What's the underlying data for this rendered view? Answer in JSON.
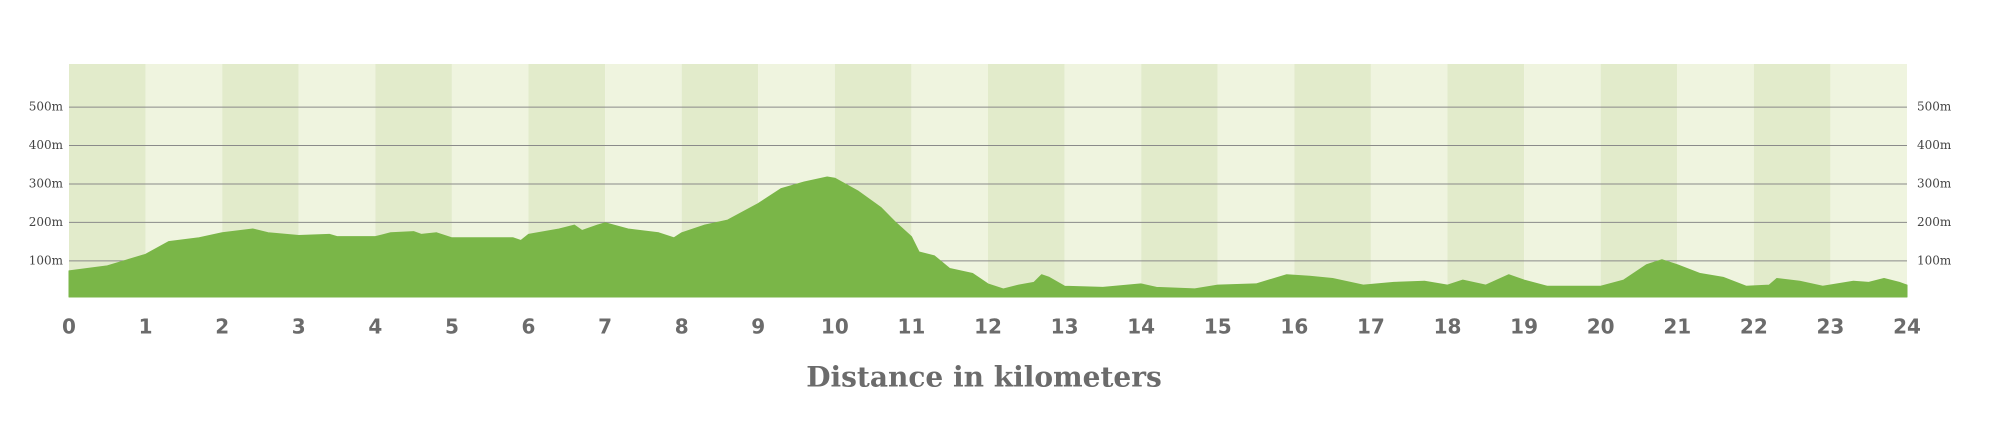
{
  "chart_data": {
    "type": "area",
    "x_label": "Distance in kilometers",
    "color": "#7ab648",
    "grid": true,
    "x": [
      0,
      0.5,
      1.0,
      1.3,
      1.7,
      2.0,
      2.4,
      2.6,
      3.0,
      3.4,
      3.5,
      4.0,
      4.2,
      4.5,
      4.6,
      4.8,
      5.0,
      5.5,
      5.8,
      5.9,
      6.0,
      6.4,
      6.6,
      6.7,
      6.9,
      7.0,
      7.3,
      7.7,
      7.9,
      8.0,
      8.3,
      8.6,
      9.0,
      9.3,
      9.6,
      9.9,
      10.0,
      10.3,
      10.6,
      10.8,
      11.0,
      11.1,
      11.3,
      11.5,
      11.8,
      12.0,
      12.2,
      12.4,
      12.6,
      12.7,
      12.8,
      13.0,
      13.5,
      14.0,
      14.2,
      14.7,
      15.0,
      15.5,
      15.9,
      16.2,
      16.5,
      16.9,
      17.3,
      17.7,
      18.0,
      18.2,
      18.5,
      18.8,
      19.0,
      19.3,
      20.0,
      20.3,
      20.6,
      20.8,
      21.0,
      21.3,
      21.6,
      21.9,
      22.2,
      22.3,
      22.6,
      22.9,
      23.3,
      23.5,
      23.7,
      23.9,
      24.0
    ],
    "values": [
      74,
      87,
      117,
      150,
      160,
      173,
      183,
      173,
      166,
      169,
      163,
      163,
      173,
      176,
      169,
      173,
      160,
      160,
      160,
      153,
      169,
      183,
      193,
      179,
      193,
      199,
      183,
      173,
      160,
      173,
      193,
      206,
      249,
      288,
      305,
      318,
      315,
      282,
      239,
      199,
      163,
      123,
      113,
      80,
      67,
      40,
      27,
      37,
      44,
      64,
      57,
      34,
      31,
      40,
      31,
      27,
      37,
      40,
      64,
      60,
      54,
      37,
      44,
      47,
      37,
      50,
      37,
      64,
      50,
      34,
      34,
      50,
      90,
      103,
      90,
      67,
      57,
      34,
      37,
      54,
      47,
      34,
      47,
      44,
      54,
      44,
      37
    ],
    "xlim": [
      0,
      24
    ],
    "xticks": [
      0,
      1,
      2,
      3,
      4,
      5,
      6,
      7,
      8,
      9,
      10,
      11,
      12,
      13,
      14,
      15,
      16,
      17,
      18,
      19,
      20,
      21,
      22,
      23,
      24
    ],
    "ylim": [
      6,
      612
    ],
    "yticks": [
      {
        "value": 100,
        "label": "100m"
      },
      {
        "value": 200,
        "label": "200m"
      },
      {
        "value": 300,
        "label": "300m"
      },
      {
        "value": 400,
        "label": "400m"
      },
      {
        "value": 500,
        "label": "500m"
      }
    ]
  }
}
